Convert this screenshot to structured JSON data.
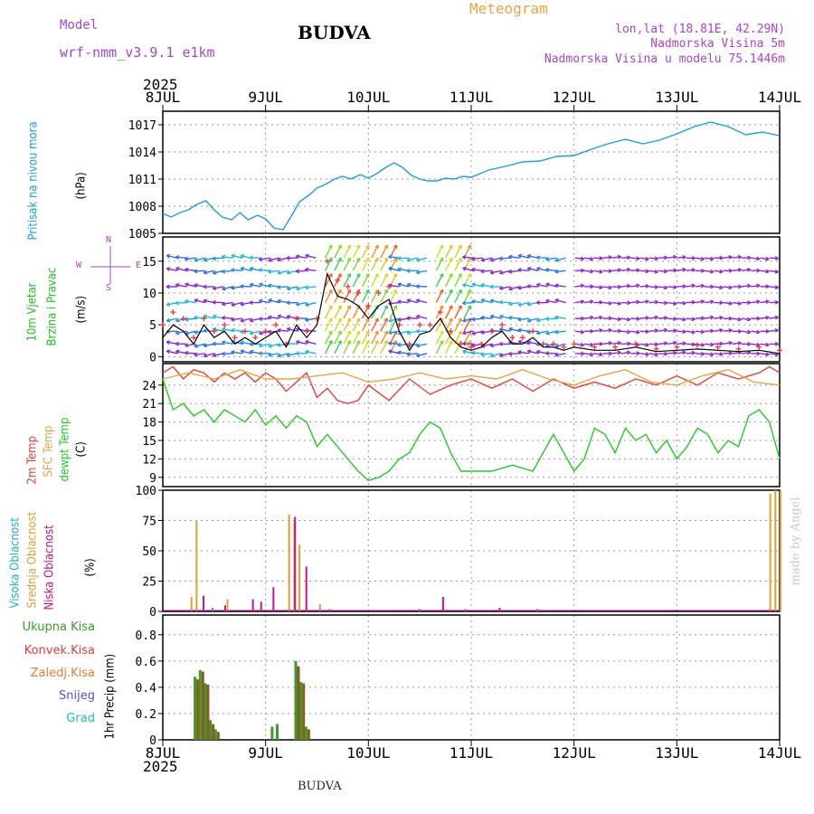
{
  "header": {
    "model_label": "Model",
    "model_name": "wrf-nmm_v3.9.1 e1km",
    "city": "BUDVA",
    "meteogram_label": "Meteogram",
    "lonlat": "lon,lat (18.81E, 42.29N)",
    "elevation": "Nadmorska Visina 5m",
    "model_elevation": "Nadmorska Visina u modelu 75.1446m",
    "year_top": "2025",
    "year_bottom": "2025",
    "footer_city": "BUDVA",
    "credit": "made by Angel"
  },
  "colors": {
    "pressure": "#1ba0e0",
    "temp2m": "#e8403a",
    "sfc_temp": "#e8a640",
    "dewpt": "#22cc22",
    "visoka": "#1aaee0",
    "srednja": "#e0a030",
    "niska": "#cc1090",
    "ukupna": "#3c9a2e",
    "konvek": "#e03c3c",
    "zaledj": "#f07c30",
    "snijeg": "#5050e0",
    "grad": "#20c0c0",
    "wind_label": "#20c020",
    "purple_text": "#aa44cc"
  },
  "chart_data": [
    {
      "type": "line",
      "name": "pressure",
      "ylabel_lines": [
        "Pritisak na nivou mora"
      ],
      "unit": "(hPa)",
      "x_ticks": [
        "8JUL",
        "9JUL",
        "10JUL",
        "11JUL",
        "12JUL",
        "13JUL",
        "14JUL"
      ],
      "ylim": [
        1005,
        1018.5
      ],
      "yticks": [
        1005,
        1008,
        1011,
        1014,
        1017
      ],
      "grid": true,
      "series": [
        {
          "x": [
            0,
            0.08,
            0.17,
            0.25,
            0.33,
            0.42,
            0.5,
            0.58,
            0.67,
            0.75,
            0.83,
            0.92,
            1.0,
            1.08,
            1.17,
            1.25,
            1.33,
            1.42,
            1.5,
            1.58,
            1.67,
            1.75,
            1.83,
            1.92,
            2.0,
            2.08,
            2.17,
            2.25,
            2.33,
            2.42,
            2.5,
            2.58,
            2.67,
            2.75,
            2.83,
            2.92,
            3.0,
            3.17,
            3.33,
            3.5,
            3.67,
            3.83,
            4.0,
            4.17,
            4.33,
            4.5,
            4.67,
            4.83,
            5.0,
            5.17,
            5.33,
            5.5,
            5.67,
            5.83,
            6.0
          ],
          "values": [
            1007.2,
            1006.8,
            1007.3,
            1007.6,
            1008.2,
            1008.6,
            1007.6,
            1006.8,
            1006.5,
            1007.3,
            1006.5,
            1007.0,
            1006.6,
            1005.6,
            1005.4,
            1006.9,
            1008.5,
            1009.2,
            1010.0,
            1010.4,
            1011.0,
            1011.3,
            1011.0,
            1011.5,
            1011.1,
            1011.6,
            1012.3,
            1012.8,
            1012.3,
            1011.4,
            1011.0,
            1010.8,
            1010.8,
            1011.1,
            1011.0,
            1011.3,
            1011.2,
            1012.0,
            1012.4,
            1012.9,
            1013.0,
            1013.5,
            1013.6,
            1014.3,
            1014.9,
            1015.4,
            1014.9,
            1015.3,
            1016.0,
            1016.8,
            1017.3,
            1016.8,
            1015.9,
            1016.2,
            1015.8
          ],
          "color": "#1ba0e0"
        }
      ]
    },
    {
      "type": "line",
      "name": "wind",
      "ylabel_lines": [
        "10m Vjetar",
        "Brzina i Pravac"
      ],
      "unit": "(m/s)",
      "compass": {
        "n": "N",
        "s": "S",
        "w": "W",
        "e": "E"
      },
      "ylim": [
        -0.8,
        18.8
      ],
      "yticks": [
        0,
        5,
        10,
        15
      ],
      "grid": true,
      "wind_levels": [
        0.5,
        2,
        4,
        6,
        8.5,
        11,
        13.5,
        15.5
      ],
      "series": [
        {
          "name": "speed",
          "x": [
            0,
            0.1,
            0.2,
            0.3,
            0.4,
            0.5,
            0.6,
            0.7,
            0.8,
            0.9,
            1.0,
            1.1,
            1.2,
            1.3,
            1.4,
            1.5,
            1.6,
            1.7,
            1.8,
            1.9,
            2.0,
            2.1,
            2.2,
            2.3,
            2.4,
            2.5,
            2.6,
            2.7,
            2.8,
            2.9,
            3.0,
            3.1,
            3.2,
            3.3,
            3.4,
            3.5,
            3.6,
            3.7,
            3.8,
            3.9,
            4.0,
            4.2,
            4.4,
            4.6,
            4.8,
            5.0,
            5.2,
            5.4,
            5.6,
            5.8,
            6.0
          ],
          "values": [
            3,
            5,
            4,
            2,
            5,
            3,
            4,
            2,
            3,
            2,
            3,
            4,
            1.5,
            5,
            3,
            5,
            13,
            9.5,
            9,
            8,
            6,
            8,
            9,
            4,
            1,
            3.5,
            4,
            6,
            3,
            1.5,
            1,
            1.5,
            3,
            4,
            2,
            2,
            3,
            1.5,
            1.5,
            1,
            1.5,
            1,
            1,
            1.5,
            0.8,
            1,
            1.2,
            1,
            0.8,
            1,
            0.5
          ],
          "color": "#000000"
        },
        {
          "name": "gust",
          "x": [
            0,
            0.1,
            0.2,
            0.3,
            0.4,
            0.5,
            0.6,
            0.7,
            0.8,
            0.9,
            1.0,
            1.1,
            1.2,
            1.3,
            1.4,
            1.5,
            1.6,
            1.7,
            1.8,
            1.9,
            2.0,
            2.1,
            2.2,
            2.3,
            2.4,
            2.5,
            2.6,
            2.7,
            2.8,
            2.9,
            3.0,
            3.1,
            3.2,
            3.3,
            3.4,
            3.5,
            3.6,
            3.7,
            3.8,
            3.9,
            4.0,
            4.2,
            4.4,
            4.6,
            4.8,
            5.0,
            5.2,
            5.4,
            5.6,
            5.8,
            6.0
          ],
          "values": [
            5,
            7,
            6,
            3,
            6,
            4,
            5,
            3,
            4,
            3,
            4,
            5,
            2,
            6,
            4,
            6,
            15,
            12,
            11,
            10,
            8,
            10,
            11,
            5,
            2,
            5,
            5,
            7,
            4,
            2,
            1.5,
            2,
            4,
            5,
            3,
            3,
            4,
            2,
            2,
            1.5,
            2,
            1.5,
            1.5,
            2,
            1.2,
            1.5,
            1.8,
            1.5,
            1.2,
            1.5,
            1
          ],
          "color": "#ff3030"
        }
      ]
    },
    {
      "type": "line",
      "name": "temperature",
      "ylabel_lines": [
        "2m Temp",
        "SFC Temp",
        "dewpt Temp"
      ],
      "unit": "(C)",
      "ylim": [
        7.5,
        27.5
      ],
      "yticks": [
        9,
        12,
        15,
        18,
        21,
        24
      ],
      "grid": true,
      "series": [
        {
          "name": "2m Temp",
          "x": [
            0,
            0.1,
            0.2,
            0.3,
            0.4,
            0.5,
            0.6,
            0.7,
            0.8,
            0.9,
            1.0,
            1.1,
            1.2,
            1.3,
            1.4,
            1.5,
            1.6,
            1.7,
            1.8,
            1.9,
            2.0,
            2.2,
            2.4,
            2.6,
            2.8,
            3.0,
            3.2,
            3.4,
            3.6,
            3.8,
            4.0,
            4.2,
            4.4,
            4.6,
            4.8,
            5.0,
            5.2,
            5.4,
            5.6,
            5.8,
            5.9,
            6.0
          ],
          "values": [
            26,
            27,
            25,
            26.5,
            26,
            24.5,
            26,
            25,
            26,
            24.5,
            26,
            25,
            23,
            24.5,
            26,
            22,
            23.5,
            21.5,
            21,
            21.5,
            24,
            21.5,
            25,
            22.5,
            24,
            25,
            23.5,
            25,
            23,
            25,
            23.5,
            24.5,
            23.5,
            25,
            24,
            25.5,
            24,
            26,
            25,
            26,
            27,
            26
          ],
          "color": "#e8403a"
        },
        {
          "name": "SFC Temp",
          "x": [
            0,
            0.25,
            0.5,
            0.75,
            1.0,
            1.25,
            1.5,
            1.75,
            2.0,
            2.25,
            2.5,
            2.75,
            3.0,
            3.25,
            3.5,
            3.75,
            4.0,
            4.25,
            4.5,
            4.75,
            5.0,
            5.25,
            5.5,
            5.75,
            6.0
          ],
          "values": [
            25,
            26,
            25,
            26.5,
            25,
            25,
            25.5,
            26,
            24.5,
            25,
            26,
            25,
            25.5,
            25,
            26.5,
            25,
            24,
            25.5,
            26.5,
            24.5,
            24,
            25.5,
            26.5,
            24.5,
            24
          ],
          "color": "#e8a640"
        },
        {
          "name": "dewpt Temp",
          "x": [
            0,
            0.1,
            0.2,
            0.3,
            0.4,
            0.5,
            0.6,
            0.7,
            0.8,
            0.9,
            1.0,
            1.1,
            1.2,
            1.3,
            1.4,
            1.5,
            1.6,
            1.7,
            1.8,
            1.9,
            2.0,
            2.1,
            2.2,
            2.3,
            2.4,
            2.5,
            2.6,
            2.7,
            2.8,
            2.9,
            3.0,
            3.2,
            3.4,
            3.6,
            3.8,
            4.0,
            4.1,
            4.2,
            4.3,
            4.4,
            4.5,
            4.6,
            4.7,
            4.8,
            4.9,
            5.0,
            5.1,
            5.2,
            5.3,
            5.4,
            5.5,
            5.6,
            5.7,
            5.8,
            5.9,
            6.0
          ],
          "values": [
            25,
            20,
            21,
            19,
            20,
            18,
            20,
            19,
            18,
            20,
            17.5,
            19,
            17,
            19,
            18,
            14,
            16,
            14,
            12,
            10,
            8.5,
            9,
            10,
            12,
            13,
            16,
            18,
            17,
            13,
            10,
            10,
            10,
            11,
            10,
            16,
            10,
            12,
            17,
            16,
            13,
            17,
            15,
            16,
            13,
            15,
            12,
            14,
            17,
            16,
            13,
            15,
            14,
            19,
            20,
            18,
            12
          ],
          "color": "#22cc22"
        }
      ]
    },
    {
      "type": "bar",
      "name": "cloud",
      "ylabel_lines": [
        "Visoka Oblacnost",
        "Srednja Oblacnost",
        "Niska Oblacnost"
      ],
      "unit": "(%)",
      "ylim": [
        0,
        100
      ],
      "yticks": [
        0,
        25,
        50,
        75,
        100
      ],
      "grid": true,
      "series": [
        {
          "name": "Srednja Oblacnost",
          "x": [
            0.27,
            0.32,
            0.62,
            1.22,
            1.27,
            1.32,
            1.52,
            5.9,
            5.95,
            6.0
          ],
          "values": [
            12,
            75,
            10,
            80,
            74,
            55,
            6,
            97,
            100,
            100
          ],
          "color": "#e0a030"
        },
        {
          "name": "Niska Oblacnost",
          "x": [
            0.37,
            0.58,
            0.85,
            0.93,
            1.05,
            1.26,
            1.37,
            2.7,
            3.25
          ],
          "values": [
            13,
            5,
            10,
            8,
            20,
            78,
            37,
            12,
            3
          ],
          "color": "#cc1090"
        },
        {
          "name": "Visoka Oblacnost",
          "x": [
            0.44,
            1.58,
            2.45,
            2.9,
            3.6
          ],
          "values": [
            3,
            2,
            2,
            2,
            2
          ],
          "color": "#1aaee0"
        }
      ]
    },
    {
      "type": "bar",
      "name": "precip",
      "ylabel_lines": [
        "Ukupna Kisa",
        "Konvek.Kisa",
        "Zaledj.Kisa",
        "Snijeg",
        "Grad"
      ],
      "axis_label": "1hr Precip (mm)",
      "ylim": [
        0,
        0.95
      ],
      "yticks": [
        0,
        0.2,
        0.4,
        0.6,
        0.8
      ],
      "yticklabels": [
        "0",
        "0.2",
        "0.4",
        "0.6",
        "0.8"
      ],
      "grid": true,
      "series": [
        {
          "name": "Ukupna Kisa",
          "x": [
            0.3,
            0.35,
            0.4,
            0.45,
            0.5,
            1.05,
            1.1,
            1.28,
            1.33,
            1.38
          ],
          "values": [
            0.48,
            0.53,
            0.43,
            0.15,
            0.08,
            0.1,
            0.12,
            0.6,
            0.44,
            0.1
          ],
          "color": "#3c9a2e"
        },
        {
          "name": "Konvek.Kisa",
          "x": [
            0.3,
            0.35,
            0.4,
            0.45,
            0.5,
            1.28,
            1.33,
            1.38
          ],
          "values": [
            0.46,
            0.52,
            0.42,
            0.12,
            0.06,
            0.56,
            0.43,
            0.08
          ],
          "color": "#8a5a1e"
        }
      ]
    }
  ]
}
